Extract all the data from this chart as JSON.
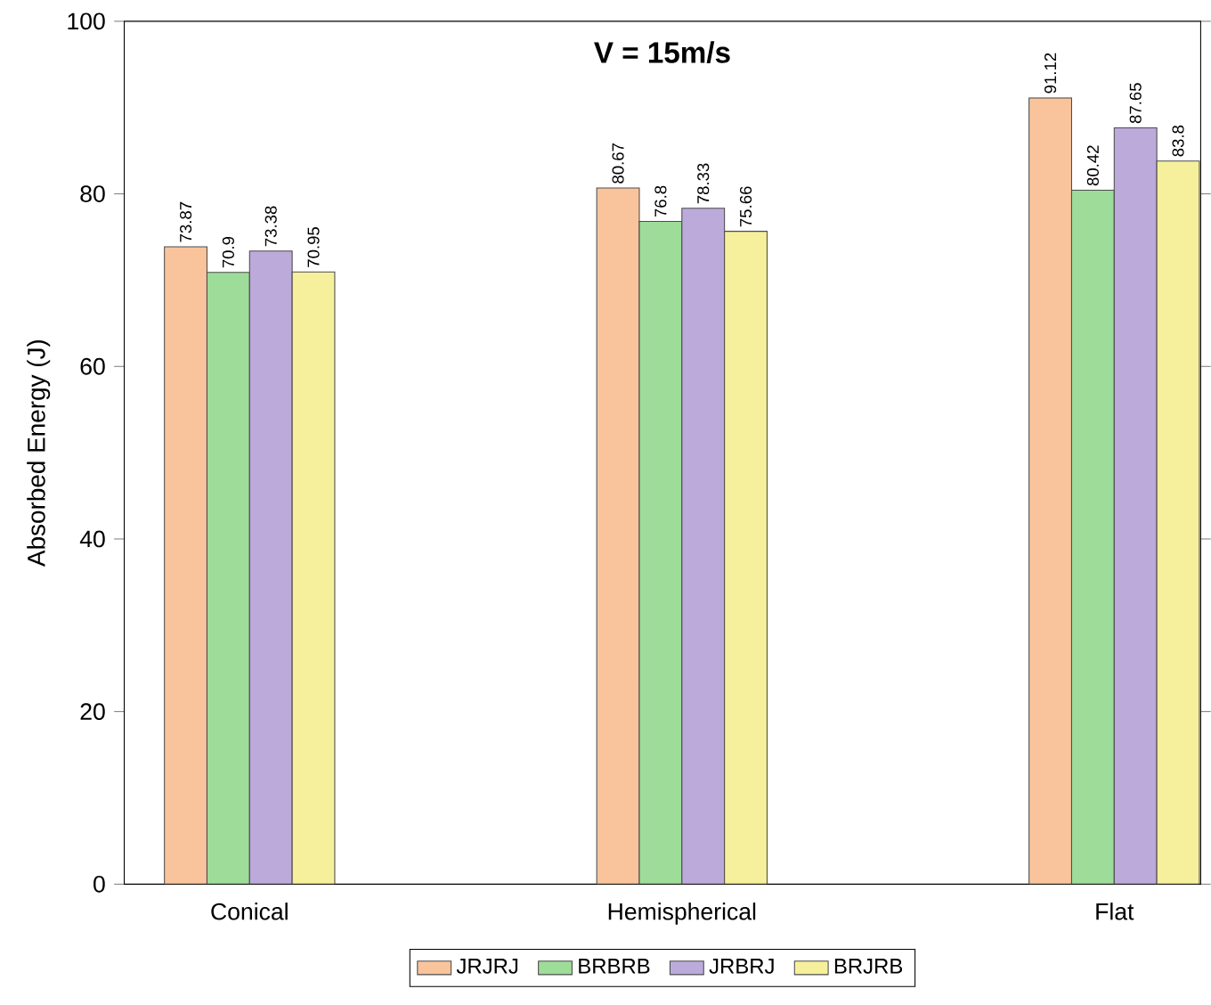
{
  "chart_data": {
    "type": "bar",
    "title": "V = 15m/s",
    "ylabel": "Absorbed Energy (J)",
    "categories": [
      "Conical",
      "Hemispherical",
      "Flat"
    ],
    "series": [
      {
        "name": "JRJRJ",
        "color": "#f9c49c",
        "values": [
          73.87,
          80.67,
          91.12
        ]
      },
      {
        "name": "BRBRB",
        "color": "#9edc9a",
        "values": [
          70.9,
          76.8,
          80.42
        ]
      },
      {
        "name": "JRBRJ",
        "color": "#bcaadb",
        "values": [
          73.38,
          78.33,
          87.65
        ]
      },
      {
        "name": "BRJRB",
        "color": "#f6f09c",
        "values": [
          70.95,
          75.66,
          83.8
        ]
      }
    ],
    "ylim": [
      0,
      100
    ],
    "yticks": [
      0,
      20,
      40,
      60,
      80,
      100
    ],
    "data_labels": true,
    "legend": "bottom",
    "grid": false
  }
}
